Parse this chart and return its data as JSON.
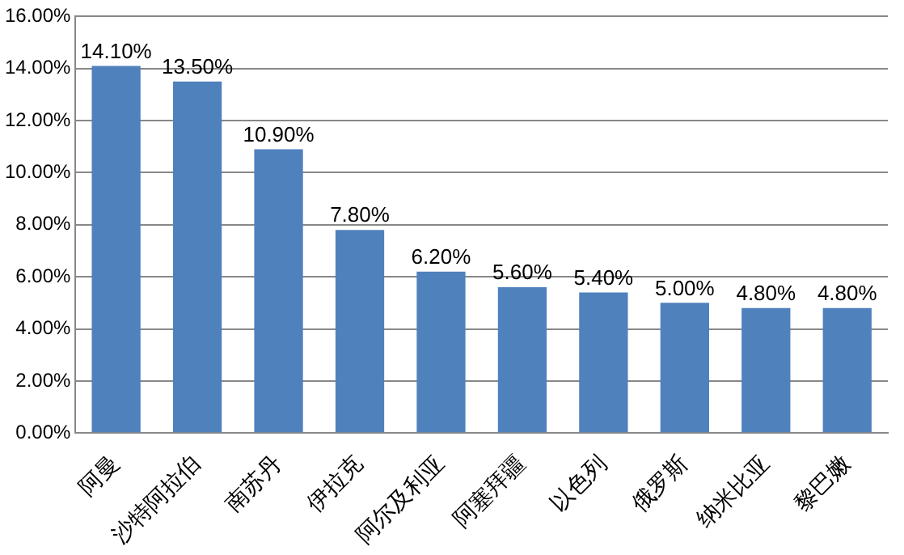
{
  "chart_data": {
    "type": "bar",
    "categories": [
      "阿曼",
      "沙特阿拉伯",
      "南苏丹",
      "伊拉克",
      "阿尔及利亚",
      "阿塞拜疆",
      "以色列",
      "俄罗斯",
      "纳米比亚",
      "黎巴嫩"
    ],
    "values": [
      14.1,
      13.5,
      10.9,
      7.8,
      6.2,
      5.6,
      5.4,
      5.0,
      4.8,
      4.8
    ],
    "value_labels": [
      "14.10%",
      "13.50%",
      "10.90%",
      "7.80%",
      "6.20%",
      "5.60%",
      "5.40%",
      "5.00%",
      "4.80%",
      "4.80%"
    ],
    "color": "#4f81bd",
    "ylim": [
      0,
      16
    ],
    "yticks": [
      {
        "value": 0,
        "label": "0.00%"
      },
      {
        "value": 2,
        "label": "2.00%"
      },
      {
        "value": 4,
        "label": "4.00%"
      },
      {
        "value": 6,
        "label": "6.00%"
      },
      {
        "value": 8,
        "label": "8.00%"
      },
      {
        "value": 10,
        "label": "10.00%"
      },
      {
        "value": 12,
        "label": "12.00%"
      },
      {
        "value": 14,
        "label": "14.00%"
      },
      {
        "value": 16,
        "label": "16.00%"
      }
    ],
    "grid": "y",
    "legend": false
  }
}
